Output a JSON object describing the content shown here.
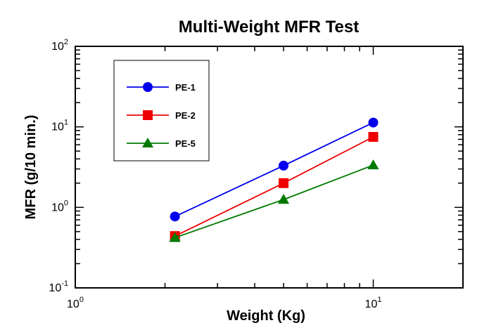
{
  "chart_data": {
    "type": "line",
    "title": "Multi-Weight MFR Test",
    "xlabel": "Weight (Kg)",
    "ylabel": "MFR (g/10 min.)",
    "x_scale": "log",
    "y_scale": "log",
    "xlim": [
      1,
      20
    ],
    "ylim": [
      0.1,
      100
    ],
    "grid": false,
    "legend_position": "top-left",
    "x_ticks": [
      {
        "base": "10",
        "exp": "0",
        "value": 1
      },
      {
        "base": "10",
        "exp": "1",
        "value": 10
      }
    ],
    "y_ticks": [
      {
        "base": "10",
        "exp": "-1",
        "value": 0.1
      },
      {
        "base": "10",
        "exp": "0",
        "value": 1
      },
      {
        "base": "10",
        "exp": "1",
        "value": 10
      },
      {
        "base": "10",
        "exp": "2",
        "value": 100
      }
    ],
    "series": [
      {
        "name": "PE-1",
        "color": "#0000ee",
        "marker": "circle",
        "points": [
          {
            "x": 2.16,
            "y": 0.77
          },
          {
            "x": 5.0,
            "y": 3.3
          },
          {
            "x": 10.0,
            "y": 11.3
          }
        ]
      },
      {
        "name": "PE-2",
        "color": "#ee0000",
        "marker": "square",
        "points": [
          {
            "x": 2.16,
            "y": 0.44
          },
          {
            "x": 5.0,
            "y": 2.0
          },
          {
            "x": 10.0,
            "y": 7.5
          }
        ]
      },
      {
        "name": "PE-5",
        "color": "#007a00",
        "marker": "triangle",
        "points": [
          {
            "x": 2.16,
            "y": 0.42
          },
          {
            "x": 5.0,
            "y": 1.25
          },
          {
            "x": 10.0,
            "y": 3.35
          }
        ]
      }
    ]
  }
}
